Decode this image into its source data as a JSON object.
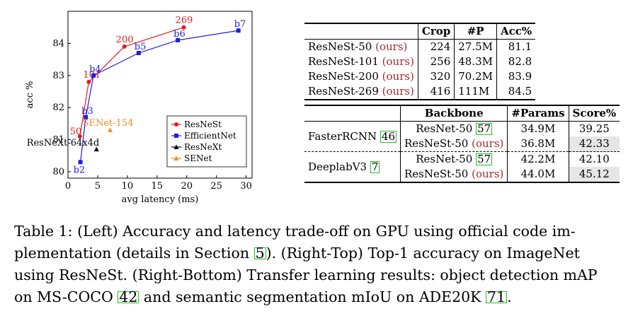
{
  "chart_data": {
    "type": "line",
    "xlabel": "avg latency (ms)",
    "ylabel": "acc %",
    "xlim": [
      0,
      31
    ],
    "ylim": [
      79.8,
      85.0
    ],
    "xticks": [
      0,
      5,
      10,
      15,
      20,
      25,
      30
    ],
    "yticks": [
      80,
      81,
      82,
      83,
      84
    ],
    "grid": false,
    "legend_position": "lower-right",
    "series": [
      {
        "name": "ResNeSt",
        "color": "#e41a1c",
        "marker": "circle",
        "points": [
          {
            "x": 2.0,
            "y": 81.1,
            "label": "50"
          },
          {
            "x": 3.5,
            "y": 82.8,
            "label": "101"
          },
          {
            "x": 9.5,
            "y": 83.9,
            "label": "200"
          },
          {
            "x": 19.5,
            "y": 84.5,
            "label": "269"
          }
        ]
      },
      {
        "name": "EfficientNet",
        "color": "#1f1fe0",
        "marker": "square",
        "points": [
          {
            "x": 2.1,
            "y": 80.3,
            "label": "b2"
          },
          {
            "x": 3.0,
            "y": 81.7,
            "label": "b3"
          },
          {
            "x": 4.3,
            "y": 83.0,
            "label": "b4"
          },
          {
            "x": 11.9,
            "y": 83.7,
            "label": "b5"
          },
          {
            "x": 18.5,
            "y": 84.1,
            "label": "b6"
          },
          {
            "x": 28.7,
            "y": 84.4,
            "label": "b7"
          }
        ]
      },
      {
        "name": "ResNeXt",
        "color": "#000000",
        "marker": "triangle",
        "points": [
          {
            "x": 4.8,
            "y": 80.7,
            "label": "ResNeXt-64x4d"
          }
        ]
      },
      {
        "name": "SENet",
        "color": "#f28c28",
        "marker": "triangle",
        "points": [
          {
            "x": 7.1,
            "y": 81.3,
            "label": "SENet-154"
          }
        ]
      }
    ]
  },
  "table_top": {
    "headers": [
      "",
      "Crop",
      "#P",
      "Acc%"
    ],
    "rows": [
      {
        "model": "ResNeSt-50",
        "tag": "(ours)",
        "crop": "224",
        "params": "27.5M",
        "acc": "81.1"
      },
      {
        "model": "ResNeSt-101",
        "tag": "(ours)",
        "crop": "256",
        "params": "48.3M",
        "acc": "82.8"
      },
      {
        "model": "ResNeSt-200",
        "tag": "(ours)",
        "crop": "320",
        "params": "70.2M",
        "acc": "83.9"
      },
      {
        "model": "ResNeSt-269",
        "tag": "(ours)",
        "crop": "416",
        "params": "111M",
        "acc": "84.5"
      }
    ]
  },
  "table_bottom": {
    "headers": [
      "",
      "Backbone",
      "#Params",
      "Score%"
    ],
    "groups": [
      {
        "task": "FasterRCNN",
        "task_cite": "46",
        "rows": [
          {
            "backbone": "ResNet-50",
            "backbone_cite": "57",
            "tag": "",
            "params": "34.9M",
            "score": "39.25",
            "highlight": false
          },
          {
            "backbone": "ResNeSt-50",
            "backbone_cite": "",
            "tag": "(ours)",
            "params": "36.8M",
            "score": "42.33",
            "highlight": true
          }
        ]
      },
      {
        "task": "DeeplabV3",
        "task_cite": "7",
        "rows": [
          {
            "backbone": "ResNet-50",
            "backbone_cite": "57",
            "tag": "",
            "params": "42.2M",
            "score": "42.10",
            "highlight": false
          },
          {
            "backbone": "ResNeSt-50",
            "backbone_cite": "",
            "tag": "(ours)",
            "params": "44.0M",
            "score": "45.12",
            "highlight": true
          }
        ]
      }
    ]
  },
  "caption": {
    "line1_a": "Table 1: (Left) Accuracy and latency trade-off on GPU using official code im-",
    "line2_a": "plementation (details in Section ",
    "line2_ref": "5",
    "line2_b": "). (Right-Top) Top-1 accuracy on ImageNet",
    "line3": "using ResNeSt. (Right-Bottom) Transfer learning results: object detection mAP",
    "line4_a": "on MS-COCO ",
    "line4_ref1": "42",
    "line4_b": " and semantic segmentation mIoU on ADE20K ",
    "line4_ref2": "71",
    "line4_c": "."
  }
}
